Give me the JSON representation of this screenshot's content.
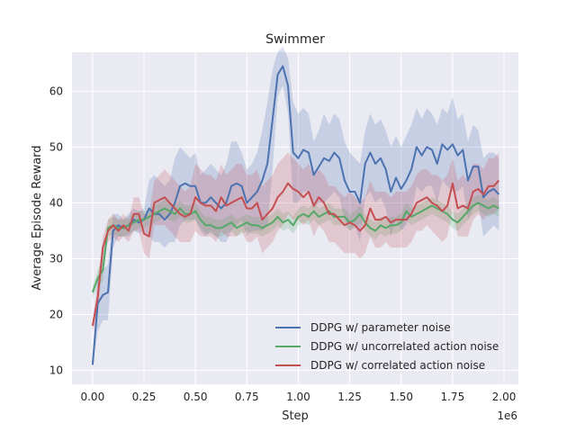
{
  "chart_data": {
    "type": "line",
    "title": "Swimmer",
    "xlabel": "Step",
    "ylabel": "Average Episode Reward",
    "x_offset_label": "1e6",
    "xlim": [
      -0.1,
      2.07
    ],
    "ylim": [
      7.5,
      67
    ],
    "xticks": [
      0.0,
      0.25,
      0.5,
      0.75,
      1.0,
      1.25,
      1.5,
      1.75,
      2.0
    ],
    "xtick_labels": [
      "0.00",
      "0.25",
      "0.50",
      "0.75",
      "1.00",
      "1.25",
      "1.50",
      "1.75",
      "2.00"
    ],
    "yticks": [
      10,
      20,
      30,
      40,
      50,
      60
    ],
    "ytick_labels": [
      "10",
      "20",
      "30",
      "40",
      "50",
      "60"
    ],
    "grid": true,
    "legend_position": "lower-right",
    "series": [
      {
        "name": "DDPG w/ parameter noise",
        "color": "#4C72B0",
        "x": [
          0.0,
          0.025,
          0.05,
          0.075,
          0.1,
          0.125,
          0.15,
          0.175,
          0.2,
          0.225,
          0.25,
          0.275,
          0.3,
          0.325,
          0.35,
          0.375,
          0.4,
          0.425,
          0.45,
          0.475,
          0.5,
          0.525,
          0.55,
          0.575,
          0.6,
          0.625,
          0.65,
          0.675,
          0.7,
          0.725,
          0.75,
          0.775,
          0.8,
          0.825,
          0.85,
          0.875,
          0.9,
          0.925,
          0.95,
          0.975,
          1.0,
          1.025,
          1.05,
          1.075,
          1.1,
          1.125,
          1.15,
          1.175,
          1.2,
          1.225,
          1.25,
          1.275,
          1.3,
          1.325,
          1.35,
          1.375,
          1.4,
          1.425,
          1.45,
          1.475,
          1.5,
          1.525,
          1.55,
          1.575,
          1.6,
          1.625,
          1.65,
          1.675,
          1.7,
          1.725,
          1.75,
          1.775,
          1.8,
          1.825,
          1.85,
          1.875,
          1.9,
          1.925,
          1.95,
          1.975
        ],
        "y": [
          11,
          22,
          23.5,
          24,
          35,
          36,
          35.5,
          36,
          37,
          36.5,
          37,
          39,
          38,
          38,
          37,
          38,
          40,
          43,
          43.5,
          43,
          43,
          40,
          40,
          41,
          40,
          39,
          40,
          43,
          43.5,
          43,
          40,
          41,
          42,
          44,
          47,
          55,
          63,
          64.5,
          61,
          49,
          48,
          49.5,
          49,
          45,
          46.5,
          48,
          47.5,
          49,
          48,
          44,
          42,
          42,
          40,
          47,
          49,
          47,
          48,
          46,
          42,
          44.5,
          42.5,
          44,
          46,
          50,
          48.5,
          50,
          49.5,
          47,
          50.5,
          49.5,
          50.5,
          48.5,
          49.5,
          44,
          46.5,
          46.5,
          41,
          42,
          42.5,
          41.5
        ],
        "upper": [
          12,
          27,
          28,
          29,
          38,
          38,
          37,
          38,
          39,
          38.5,
          39,
          44,
          45,
          44,
          43,
          44,
          48,
          50,
          49,
          48,
          49,
          45,
          46,
          47,
          46,
          45,
          47,
          51,
          51,
          49,
          46,
          47,
          49,
          53,
          58,
          64,
          67,
          68,
          66,
          58,
          56,
          57,
          56,
          51,
          53,
          56,
          54,
          56,
          55,
          51,
          49,
          48,
          47,
          53,
          56,
          54,
          55,
          53,
          50,
          52,
          50,
          52,
          54,
          57,
          55,
          57,
          56,
          54,
          57,
          56,
          59,
          55,
          56,
          51,
          54,
          53,
          48,
          49,
          49,
          48
        ],
        "lower": [
          10,
          17,
          19,
          19,
          32,
          34,
          34,
          34,
          35,
          34.5,
          35,
          34,
          33,
          33,
          32,
          33,
          33,
          36,
          37,
          37,
          37,
          35,
          34,
          35,
          34,
          33,
          33,
          35,
          36,
          37,
          34,
          35,
          35,
          35,
          36,
          46,
          59,
          61,
          56,
          40,
          40,
          42,
          42,
          39,
          40,
          40,
          41,
          42,
          41,
          37,
          35,
          36,
          33,
          41,
          42,
          40,
          41,
          39,
          34,
          37,
          35,
          36,
          38,
          43,
          42,
          43,
          43,
          40,
          44,
          43,
          42,
          42,
          43,
          37,
          39,
          40,
          34,
          35,
          36,
          35
        ]
      },
      {
        "name": "DDPG w/ uncorrelated action noise",
        "color": "#55A868",
        "x": [
          0.0,
          0.025,
          0.05,
          0.075,
          0.1,
          0.125,
          0.15,
          0.175,
          0.2,
          0.225,
          0.25,
          0.275,
          0.3,
          0.325,
          0.35,
          0.375,
          0.4,
          0.425,
          0.45,
          0.475,
          0.5,
          0.525,
          0.55,
          0.575,
          0.6,
          0.625,
          0.65,
          0.675,
          0.7,
          0.725,
          0.75,
          0.775,
          0.8,
          0.825,
          0.85,
          0.875,
          0.9,
          0.925,
          0.95,
          0.975,
          1.0,
          1.025,
          1.05,
          1.075,
          1.1,
          1.125,
          1.15,
          1.175,
          1.2,
          1.225,
          1.25,
          1.275,
          1.3,
          1.325,
          1.35,
          1.375,
          1.4,
          1.425,
          1.45,
          1.475,
          1.5,
          1.525,
          1.55,
          1.575,
          1.6,
          1.625,
          1.65,
          1.675,
          1.7,
          1.725,
          1.75,
          1.775,
          1.8,
          1.825,
          1.85,
          1.875,
          1.9,
          1.925,
          1.95,
          1.975
        ],
        "y": [
          24,
          26.5,
          28,
          35.5,
          36,
          35.5,
          35.5,
          36,
          36.5,
          37,
          37,
          37.5,
          38,
          38.5,
          39,
          38.5,
          38,
          39,
          38,
          38,
          38.5,
          37,
          36,
          36,
          35.5,
          35.5,
          36,
          36.5,
          35.5,
          36,
          36.5,
          36,
          36,
          35.5,
          36,
          36.5,
          37.5,
          36.5,
          37,
          36,
          37.5,
          38,
          37.5,
          38.5,
          37.5,
          38,
          38.5,
          37.5,
          37.5,
          37.5,
          36.5,
          37,
          38,
          36.5,
          35.5,
          35,
          36,
          35.5,
          36,
          36,
          36.5,
          38.5,
          37.5,
          38,
          38.5,
          39,
          39.5,
          39,
          38.5,
          38,
          37,
          36.5,
          37.5,
          38.5,
          39.5,
          40,
          39.5,
          39,
          39.5,
          39
        ],
        "upper": [
          25,
          28,
          30,
          37,
          37.5,
          37,
          37,
          37.5,
          38,
          38.5,
          38.5,
          39,
          39.5,
          40,
          40.5,
          40,
          39.5,
          40.5,
          39.5,
          39.5,
          40,
          38.5,
          37.5,
          37.5,
          37,
          37,
          37.5,
          38,
          37,
          37.5,
          38,
          37.5,
          37.5,
          37,
          37.5,
          38,
          39,
          38,
          38.5,
          37.5,
          39,
          39.5,
          39,
          40,
          39,
          39.5,
          40,
          39,
          39,
          39,
          38,
          38.5,
          39.5,
          38,
          37,
          36.5,
          37.5,
          37,
          37.5,
          37.5,
          38,
          40,
          39,
          39.5,
          40,
          40.5,
          41,
          40.5,
          40,
          39.5,
          38.5,
          38,
          39,
          40,
          41,
          41.5,
          41,
          40.5,
          41,
          40.5
        ],
        "lower": [
          23,
          25,
          26,
          34,
          34.5,
          34,
          34,
          34.5,
          35,
          35.5,
          35.5,
          36,
          36.5,
          37,
          37.5,
          37,
          36.5,
          37.5,
          36.5,
          36.5,
          37,
          35.5,
          34.5,
          34.5,
          34,
          34,
          34.5,
          35,
          34,
          34.5,
          35,
          34.5,
          34.5,
          34,
          34.5,
          35,
          36,
          35,
          35.5,
          34.5,
          36,
          36.5,
          36,
          37,
          36,
          36.5,
          37,
          36,
          36,
          36,
          35,
          35.5,
          36.5,
          35,
          34,
          33.5,
          34.5,
          34,
          34.5,
          34.5,
          35,
          37,
          36,
          36.5,
          37,
          37.5,
          38,
          37.5,
          37,
          36.5,
          35.5,
          35,
          36,
          37,
          38,
          38.5,
          38,
          37.5,
          38,
          37.5
        ]
      },
      {
        "name": "DDPG w/ correlated action noise",
        "color": "#C44E52",
        "x": [
          0.0,
          0.025,
          0.05,
          0.075,
          0.1,
          0.125,
          0.15,
          0.175,
          0.2,
          0.225,
          0.25,
          0.275,
          0.3,
          0.325,
          0.35,
          0.375,
          0.4,
          0.425,
          0.45,
          0.475,
          0.5,
          0.525,
          0.55,
          0.575,
          0.6,
          0.625,
          0.65,
          0.675,
          0.7,
          0.725,
          0.75,
          0.775,
          0.8,
          0.825,
          0.85,
          0.875,
          0.9,
          0.925,
          0.95,
          0.975,
          1.0,
          1.025,
          1.05,
          1.075,
          1.1,
          1.125,
          1.15,
          1.175,
          1.2,
          1.225,
          1.25,
          1.275,
          1.3,
          1.325,
          1.35,
          1.375,
          1.4,
          1.425,
          1.45,
          1.475,
          1.5,
          1.525,
          1.55,
          1.575,
          1.6,
          1.625,
          1.65,
          1.675,
          1.7,
          1.725,
          1.75,
          1.775,
          1.8,
          1.825,
          1.85,
          1.875,
          1.9,
          1.925,
          1.95,
          1.975
        ],
        "y": [
          18,
          23,
          32,
          35,
          36,
          35,
          36,
          35,
          38,
          38,
          34.5,
          34,
          40,
          40.5,
          41,
          40,
          39,
          38,
          37.5,
          38,
          41,
          40,
          39.5,
          39.5,
          38.5,
          41,
          39.5,
          40,
          40.5,
          41,
          39,
          39,
          40,
          37,
          38,
          39,
          41,
          42,
          43.5,
          42.5,
          42,
          41,
          42,
          39.5,
          41,
          40,
          38,
          38,
          37,
          36,
          36.5,
          36,
          35,
          36,
          39,
          37,
          37,
          37.5,
          36.5,
          37,
          37,
          37,
          38,
          40,
          40.5,
          41,
          40,
          39.5,
          38.5,
          39.5,
          43.5,
          39,
          39.5,
          39,
          42,
          42.5,
          41.5,
          43,
          43,
          44
        ],
        "upper": [
          19,
          26,
          34,
          37,
          38,
          37,
          38,
          37,
          41,
          41,
          38,
          38,
          44,
          45,
          46,
          45,
          44,
          43,
          42,
          43,
          47,
          46,
          45,
          45,
          44,
          47,
          45,
          46,
          47,
          47,
          45,
          45,
          46,
          43,
          44,
          45,
          47,
          48,
          49,
          48,
          47,
          46,
          47,
          45,
          46,
          45,
          43,
          43,
          42,
          41,
          42,
          41,
          40,
          41,
          44,
          42,
          42,
          42,
          41,
          42,
          42,
          42,
          43,
          45,
          46,
          46,
          45,
          45,
          44,
          45,
          48,
          44,
          45,
          44,
          47,
          47,
          46,
          48,
          48,
          49
        ],
        "lower": [
          17,
          20,
          30,
          33,
          34,
          33,
          34,
          33,
          35,
          35,
          31,
          30,
          36,
          36,
          36,
          35,
          34,
          33,
          33,
          33,
          35,
          34,
          34,
          34,
          33,
          35,
          34,
          34,
          34,
          35,
          33,
          33,
          34,
          31,
          32,
          33,
          35,
          36,
          38,
          37,
          37,
          36,
          37,
          34,
          36,
          35,
          33,
          33,
          32,
          31,
          31,
          31,
          30,
          31,
          34,
          32,
          32,
          33,
          32,
          32,
          32,
          32,
          33,
          35,
          35,
          36,
          35,
          34,
          33,
          34,
          39,
          34,
          34,
          34,
          37,
          38,
          37,
          38,
          38,
          39
        ]
      }
    ]
  }
}
